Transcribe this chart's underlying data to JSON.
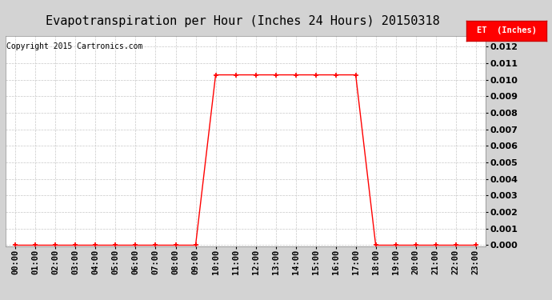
{
  "title": "Evapotranspiration per Hour (Inches 24 Hours) 20150318",
  "copyright": "Copyright 2015 Cartronics.com",
  "legend_label": "ET  (Inches)",
  "legend_bg": "#ff0000",
  "legend_text_color": "#ffffff",
  "line_color": "#ff0000",
  "marker": "+",
  "marker_size": 4,
  "marker_linewidth": 1.2,
  "line_width": 1.0,
  "background_color": "#ffffff",
  "plot_bg": "#ffffff",
  "outer_bg": "#d3d3d3",
  "ylim": [
    -5e-05,
    0.01265
  ],
  "yticks": [
    0.0,
    0.001,
    0.002,
    0.003,
    0.004,
    0.005,
    0.006,
    0.007,
    0.008,
    0.009,
    0.01,
    0.011,
    0.012
  ],
  "hours": [
    "00:00",
    "01:00",
    "02:00",
    "03:00",
    "04:00",
    "05:00",
    "06:00",
    "07:00",
    "08:00",
    "09:00",
    "10:00",
    "11:00",
    "12:00",
    "13:00",
    "14:00",
    "15:00",
    "16:00",
    "17:00",
    "18:00",
    "19:00",
    "20:00",
    "21:00",
    "22:00",
    "23:00"
  ],
  "values": [
    0.0,
    0.0,
    0.0,
    0.0,
    0.0,
    0.0,
    0.0,
    0.0,
    0.0,
    0.0,
    0.0103,
    0.0103,
    0.0103,
    0.0103,
    0.0103,
    0.0103,
    0.0103,
    0.0103,
    0.0,
    0.0,
    0.0,
    0.0,
    0.0,
    0.0
  ],
  "title_fontsize": 11,
  "copyright_fontsize": 7,
  "tick_fontsize": 7.5,
  "ytick_fontsize": 8,
  "grid_color": "#c8c8c8",
  "grid_style": "--",
  "grid_linewidth": 0.5
}
